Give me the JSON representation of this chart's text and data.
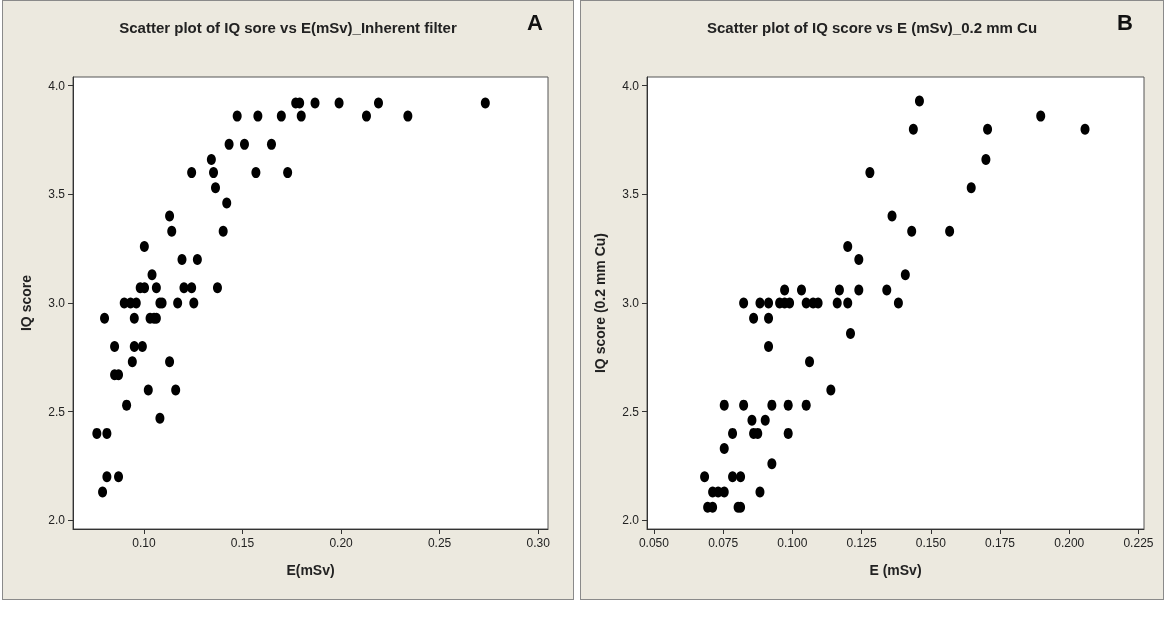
{
  "chart_data": [
    {
      "type": "scatter",
      "title": "Scatter plot of IQ sore vs E(mSv)_Inherent filter",
      "annotations": [
        "A"
      ],
      "xlabel": "E(mSv)",
      "ylabel": "IQ score",
      "marker": "circle",
      "grid": false,
      "xlim": [
        0.064,
        0.305
      ],
      "ylim": [
        1.96,
        4.04
      ],
      "xticks": [
        {
          "value": 0.1,
          "label": "0.10"
        },
        {
          "value": 0.15,
          "label": "0.15"
        },
        {
          "value": 0.2,
          "label": "0.20"
        },
        {
          "value": 0.25,
          "label": "0.25"
        },
        {
          "value": 0.3,
          "label": "0.30"
        }
      ],
      "yticks": [
        {
          "value": 2,
          "label": "2.0"
        },
        {
          "value": 2.5,
          "label": "2.5"
        },
        {
          "value": 3,
          "label": "3.0"
        },
        {
          "value": 3.5,
          "label": "3.5"
        },
        {
          "value": 4,
          "label": "4.0"
        }
      ],
      "series": [
        {
          "color": "#000000",
          "x": [
            0.0761,
            0.0812,
            0.079,
            0.0812,
            0.0871,
            0.08,
            0.0851,
            0.0851,
            0.0871,
            0.0912,
            0.0941,
            0.0951,
            0.0992,
            0.09,
            0.0932,
            0.0961,
            0.0951,
            0.0981,
            0.1003,
            0.1002,
            0.1022,
            0.1041,
            0.1063,
            0.1031,
            0.1051,
            0.1063,
            0.1081,
            0.1092,
            0.1081,
            0.113,
            0.1161,
            0.113,
            0.1141,
            0.1171,
            0.1193,
            0.1203,
            0.1242,
            0.1253,
            0.1271,
            0.1242,
            0.1342,
            0.1353,
            0.1363,
            0.1373,
            0.1402,
            0.142,
            0.1432,
            0.1473,
            0.151,
            0.1568,
            0.1578,
            0.1647,
            0.1697,
            0.1729,
            0.177,
            0.179,
            0.1798,
            0.1868,
            0.199,
            0.2129,
            0.219,
            0.2339,
            0.2732
          ],
          "values": [
            2.4,
            2.4,
            2.13,
            2.2,
            2.2,
            2.93,
            2.8,
            2.67,
            2.67,
            2.53,
            2.73,
            2.8,
            2.8,
            3.0,
            3.0,
            3.0,
            2.93,
            3.07,
            3.07,
            3.26,
            2.6,
            3.13,
            3.07,
            2.93,
            2.93,
            2.93,
            3.0,
            3.0,
            2.47,
            2.73,
            2.6,
            3.4,
            3.33,
            3.0,
            3.2,
            3.07,
            3.07,
            3.0,
            3.2,
            3.6,
            3.66,
            3.6,
            3.53,
            3.07,
            3.33,
            3.46,
            3.73,
            3.86,
            3.73,
            3.6,
            3.86,
            3.73,
            3.86,
            3.6,
            3.92,
            3.92,
            3.86,
            3.92,
            3.92,
            3.86,
            3.92,
            3.86,
            3.92
          ]
        }
      ]
    },
    {
      "type": "scatter",
      "title": "Scatter plot of IQ score vs E (mSv)_0.2 mm Cu",
      "annotations": [
        "B"
      ],
      "xlabel": "E (mSv)",
      "ylabel": "IQ score (0.2 mm Cu)",
      "marker": "circle",
      "grid": false,
      "xlim": [
        0.0475,
        0.227
      ],
      "ylim": [
        1.96,
        4.04
      ],
      "xticks": [
        {
          "value": 0.05,
          "label": "0.050"
        },
        {
          "value": 0.075,
          "label": "0.075"
        },
        {
          "value": 0.1,
          "label": "0.100"
        },
        {
          "value": 0.125,
          "label": "0.125"
        },
        {
          "value": 0.15,
          "label": "0.150"
        },
        {
          "value": 0.175,
          "label": "0.175"
        },
        {
          "value": 0.2,
          "label": "0.200"
        },
        {
          "value": 0.225,
          "label": "0.225"
        }
      ],
      "yticks": [
        {
          "value": 2,
          "label": "2.0"
        },
        {
          "value": 2.5,
          "label": "2.5"
        },
        {
          "value": 3,
          "label": "3.0"
        },
        {
          "value": 3.5,
          "label": "3.5"
        },
        {
          "value": 4,
          "label": "4.0"
        }
      ],
      "series": [
        {
          "color": "#000000",
          "x": [
            0.0683,
            0.0694,
            0.0712,
            0.0712,
            0.0732,
            0.0754,
            0.0754,
            0.0754,
            0.0784,
            0.0784,
            0.0813,
            0.0804,
            0.0813,
            0.0824,
            0.0824,
            0.0854,
            0.086,
            0.086,
            0.0875,
            0.0883,
            0.0883,
            0.0902,
            0.0914,
            0.0914,
            0.0914,
            0.0926,
            0.0926,
            0.0954,
            0.0972,
            0.099,
            0.0972,
            0.0985,
            0.0985,
            0.1033,
            0.105,
            0.1075,
            0.1093,
            0.105,
            0.1062,
            0.1139,
            0.1162,
            0.117,
            0.12,
            0.12,
            0.121,
            0.124,
            0.124,
            0.128,
            0.1341,
            0.136,
            0.1383,
            0.1408,
            0.1431,
            0.1437,
            0.1459,
            0.1568,
            0.1646,
            0.1699,
            0.1705,
            0.1897,
            0.2057
          ],
          "values": [
            2.2,
            2.06,
            2.06,
            2.13,
            2.13,
            2.13,
            2.33,
            2.53,
            2.4,
            2.2,
            2.2,
            2.06,
            2.06,
            2.53,
            3.0,
            2.46,
            2.93,
            2.4,
            2.4,
            2.13,
            3.0,
            2.46,
            3.0,
            2.93,
            2.8,
            2.53,
            2.26,
            3.0,
            3.0,
            3.0,
            3.06,
            2.53,
            2.4,
            3.06,
            3.0,
            3.0,
            3.0,
            2.53,
            2.73,
            2.6,
            3.0,
            3.06,
            3.26,
            3.0,
            2.86,
            3.2,
            3.06,
            3.6,
            3.06,
            3.4,
            3.0,
            3.13,
            3.33,
            3.8,
            3.93,
            3.33,
            3.53,
            3.66,
            3.8,
            3.86,
            3.8
          ]
        }
      ]
    }
  ]
}
